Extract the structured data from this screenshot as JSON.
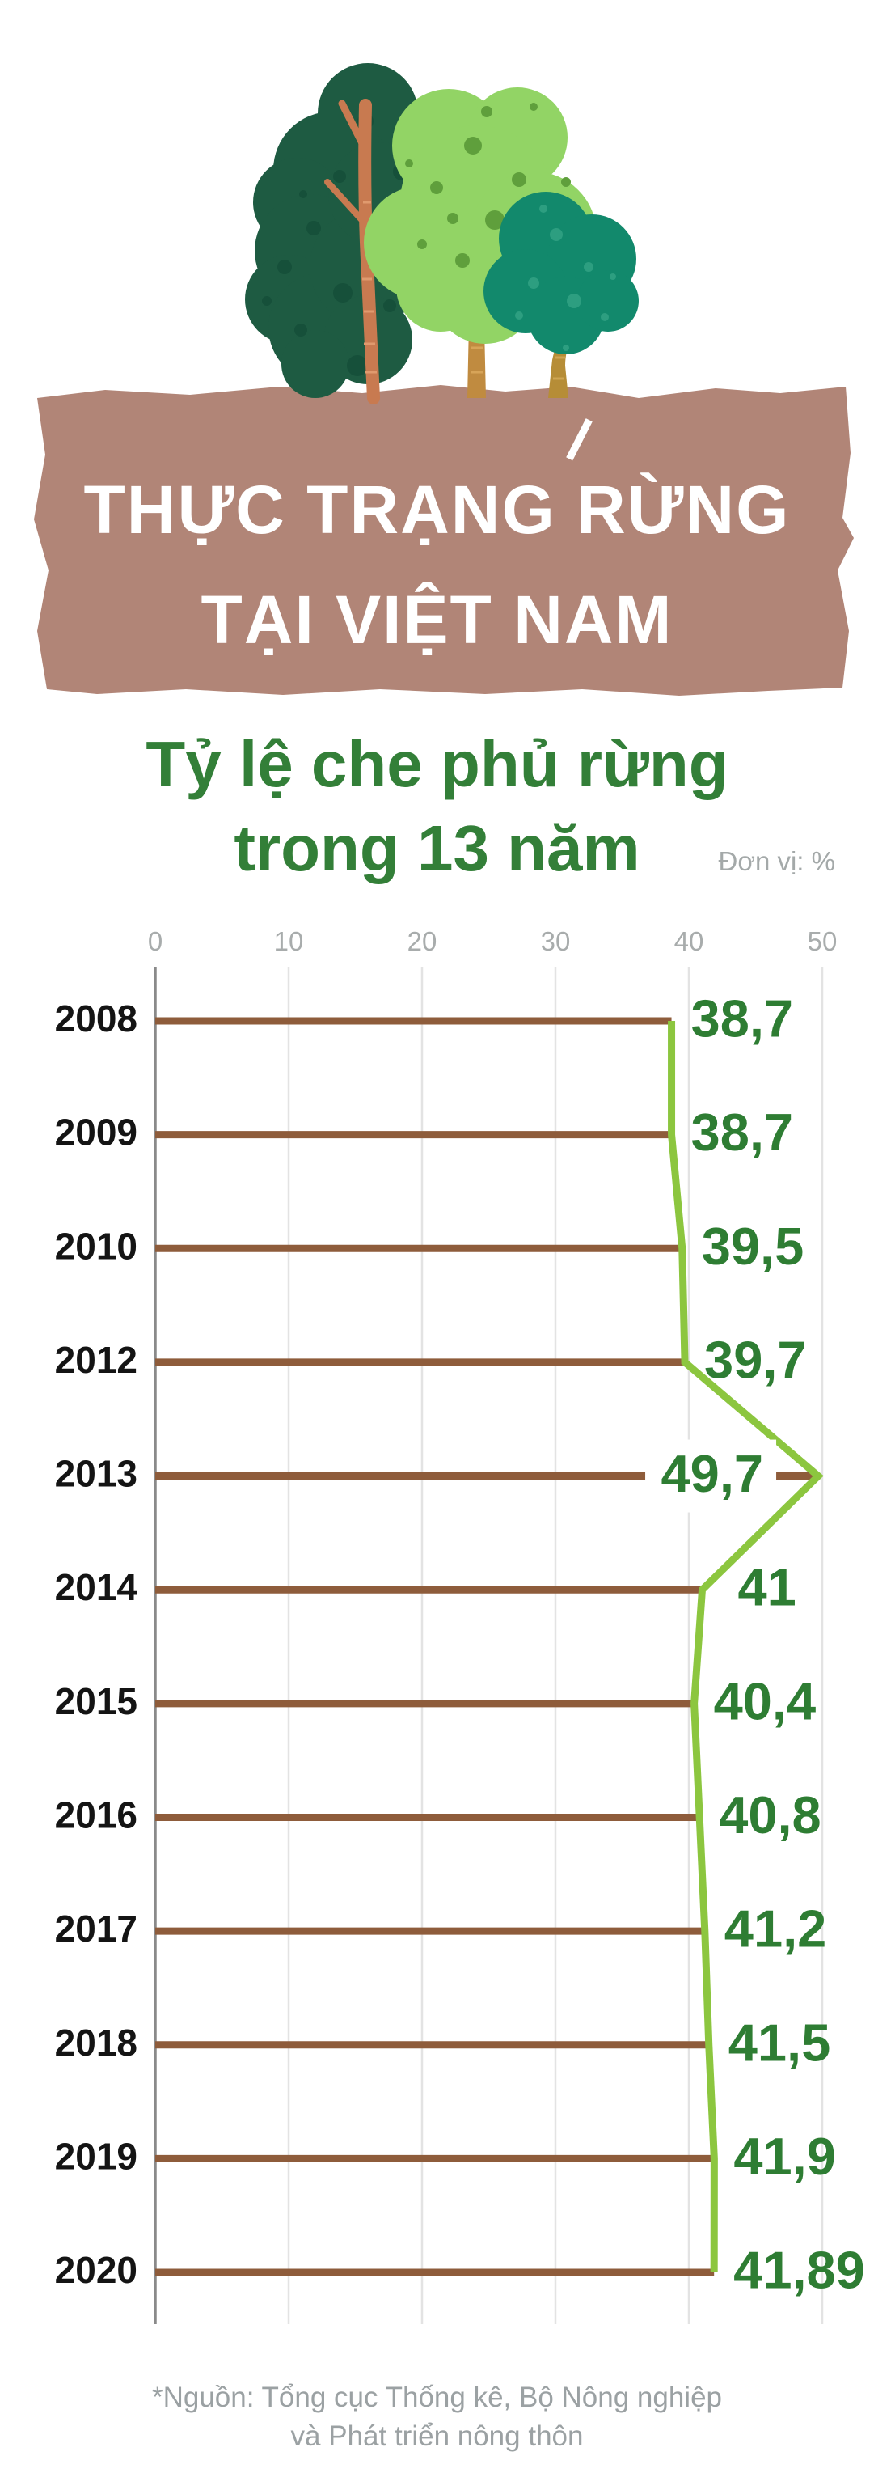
{
  "banner": {
    "title_line1": "THỰC TRẠNG RỪNG",
    "title_line2": "TẠI VIỆT NAM",
    "bg_color": "#b18577",
    "text_color": "#ffffff"
  },
  "subtitle": {
    "line1": "Tỷ lệ che phủ rừng",
    "line2": "trong 13 năm",
    "color": "#337f38"
  },
  "unit_label": "Đơn vị: %",
  "chart_data": {
    "type": "bar",
    "orientation": "horizontal",
    "title": "Tỷ lệ che phủ rừng trong 13 năm",
    "unit": "%",
    "categories": [
      "2008",
      "2009",
      "2010",
      "2012",
      "2013",
      "2014",
      "2015",
      "2016",
      "2017",
      "2018",
      "2019",
      "2020"
    ],
    "values": [
      38.7,
      38.7,
      39.5,
      39.7,
      49.7,
      41,
      40.4,
      40.8,
      41.2,
      41.5,
      41.9,
      41.89
    ],
    "value_labels": [
      "38,7",
      "38,7",
      "39,5",
      "39,7",
      "49,7",
      "41",
      "40,4",
      "40,8",
      "41,2",
      "41,5",
      "41,9",
      "41,89"
    ],
    "x_ticks": [
      0,
      10,
      20,
      30,
      40,
      50
    ],
    "xlim": [
      0,
      50
    ],
    "grid": true,
    "legend_position": "none",
    "bar_color": "#8e5c3b",
    "line_color": "#8cc63f",
    "value_color": "#2e7d33",
    "category_color": "#141414",
    "tick_color": "#a8acac",
    "axis_color": "#8a8a8a",
    "grid_color": "#e3e3e3",
    "label_placement": [
      "outside",
      "outside",
      "outside",
      "outside",
      "inside",
      "outside",
      "outside",
      "outside",
      "outside",
      "outside",
      "outside",
      "outside"
    ],
    "label_dx": [
      24,
      24,
      24,
      24,
      -68,
      44,
      24,
      24,
      24,
      24,
      24,
      24
    ]
  },
  "footer": {
    "line1": "*Nguồn: Tổng cục Thống kê, Bộ Nông nghiệp",
    "line2": "và Phát triển nông thôn",
    "color": "#9ba1a3"
  }
}
